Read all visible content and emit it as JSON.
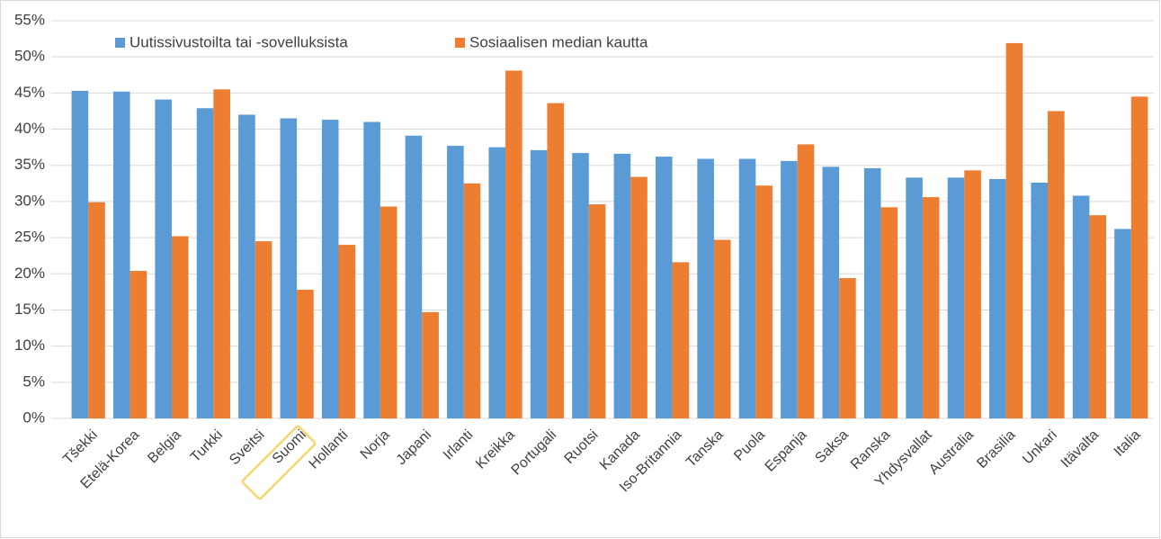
{
  "chart_data": {
    "type": "bar",
    "categories": [
      "Tšekki",
      "Etelä-Korea",
      "Belgia",
      "Turkki",
      "Sveitsi",
      "Suomi",
      "Hollanti",
      "Norja",
      "Japani",
      "Irlanti",
      "Kreikka",
      "Portugali",
      "Ruotsi",
      "Kanada",
      "Iso-Britannia",
      "Tanska",
      "Puola",
      "Espanja",
      "Saksa",
      "Ranska",
      "Yhdysvallat",
      "Australia",
      "Brasilia",
      "Unkari",
      "Itävalta",
      "Italia"
    ],
    "series": [
      {
        "name": "Uutissivustoilta tai -sovelluksista",
        "color": "#5b9bd5",
        "values": [
          45.3,
          45.2,
          44.1,
          42.9,
          42.0,
          41.5,
          41.3,
          41.0,
          39.1,
          37.7,
          37.5,
          37.1,
          36.7,
          36.6,
          36.2,
          35.9,
          35.9,
          35.6,
          34.8,
          34.6,
          33.3,
          33.3,
          33.1,
          32.6,
          30.8,
          26.2
        ]
      },
      {
        "name": "Sosiaalisen median kautta",
        "color": "#ed7d31",
        "values": [
          29.9,
          20.4,
          25.2,
          45.5,
          24.5,
          17.8,
          24.0,
          29.3,
          14.7,
          32.5,
          48.1,
          43.6,
          29.6,
          33.4,
          21.6,
          24.7,
          32.2,
          37.9,
          19.4,
          29.2,
          30.6,
          34.3,
          51.9,
          42.5,
          28.1,
          44.5
        ]
      }
    ],
    "ylim": [
      0,
      55
    ],
    "yticks": [
      {
        "value": 0,
        "label": "0%"
      },
      {
        "value": 5,
        "label": "5%"
      },
      {
        "value": 10,
        "label": "10%"
      },
      {
        "value": 15,
        "label": "15%"
      },
      {
        "value": 20,
        "label": "20%"
      },
      {
        "value": 25,
        "label": "25%"
      },
      {
        "value": 30,
        "label": "30%"
      },
      {
        "value": 35,
        "label": "35%"
      },
      {
        "value": 40,
        "label": "40%"
      },
      {
        "value": 45,
        "label": "45%"
      },
      {
        "value": 50,
        "label": "50%"
      },
      {
        "value": 55,
        "label": "55%"
      }
    ],
    "grid": true,
    "legend": "top-left"
  }
}
